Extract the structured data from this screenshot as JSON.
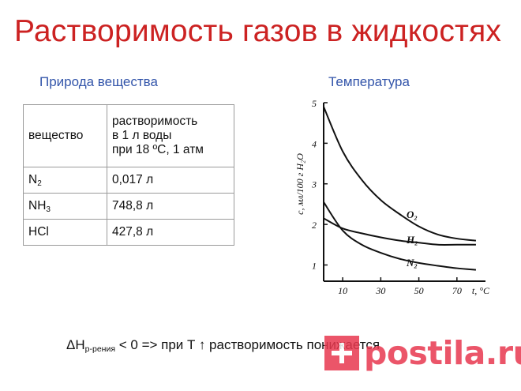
{
  "title": "Растворимость газов в жидкостях",
  "left_heading": "Природа вещества",
  "right_heading": "Температура",
  "table": {
    "header": [
      "вещество",
      "растворимость\nв 1 л воды\nпри 18 ºС, 1 атм"
    ],
    "rows": [
      {
        "substance": "N",
        "subscript": "2",
        "value": "0,017 л"
      },
      {
        "substance": "NH",
        "subscript": "3",
        "value": "748,8 л"
      },
      {
        "substance": "HCl",
        "subscript": "",
        "value": "427,8 л"
      }
    ]
  },
  "formula": {
    "delta_h": "ΔH",
    "subscript": "р-рения",
    "rest": " < 0 => при T ↑ растворимость понижается"
  },
  "watermark": "postila.ru",
  "chart_data": {
    "type": "line",
    "xlabel": "t, °C",
    "ylabel": "c, мл/100 г H₂O",
    "xlim": [
      0,
      85
    ],
    "ylim": [
      0.6,
      5
    ],
    "x_ticks": [
      "10",
      "30",
      "50",
      "70"
    ],
    "x_tick_values": [
      10,
      30,
      50,
      70
    ],
    "y_ticks": [
      "1",
      "2",
      "3",
      "4",
      "5"
    ],
    "y_tick_values": [
      1,
      2,
      3,
      4,
      5
    ],
    "series": [
      {
        "name": "O₂",
        "x": [
          0,
          10,
          20,
          30,
          40,
          50,
          60,
          70,
          80
        ],
        "y": [
          4.9,
          3.8,
          3.1,
          2.6,
          2.25,
          1.95,
          1.75,
          1.65,
          1.6
        ]
      },
      {
        "name": "H₂",
        "x": [
          0,
          10,
          20,
          30,
          40,
          50,
          60,
          70,
          80
        ],
        "y": [
          2.15,
          1.9,
          1.78,
          1.68,
          1.6,
          1.55,
          1.5,
          1.5,
          1.5
        ]
      },
      {
        "name": "N₂",
        "x": [
          0,
          10,
          20,
          30,
          40,
          50,
          60,
          70,
          80
        ],
        "y": [
          2.55,
          1.85,
          1.5,
          1.3,
          1.15,
          1.05,
          0.98,
          0.92,
          0.88
        ]
      }
    ]
  }
}
